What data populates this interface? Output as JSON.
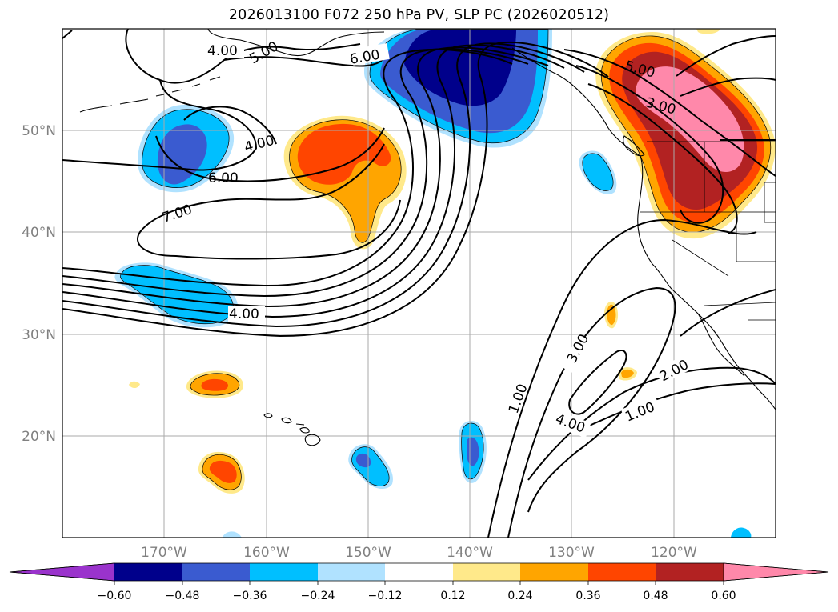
{
  "title": "2026013100 F072 250 hPa PV, SLP PC (2026020512)",
  "map": {
    "extent_lon": [
      -180,
      -110
    ],
    "extent_lat": [
      10,
      60
    ],
    "lat_ticks": [
      {
        "value": 20,
        "label": "20°N"
      },
      {
        "value": 30,
        "label": "30°N"
      },
      {
        "value": 40,
        "label": "40°N"
      },
      {
        "value": 50,
        "label": "50°N"
      }
    ],
    "lon_ticks": [
      {
        "value": -170,
        "label": "170°W"
      },
      {
        "value": -160,
        "label": "160°W"
      },
      {
        "value": -150,
        "label": "150°W"
      },
      {
        "value": -140,
        "label": "140°W"
      },
      {
        "value": -130,
        "label": "130°W"
      },
      {
        "value": -120,
        "label": "120°W"
      }
    ],
    "gridlines": true,
    "contour_labels": [
      "4.00",
      "5.00",
      "6.00",
      "4.00",
      "6.00",
      "7.00",
      "4.00",
      "5.00",
      "3.00",
      "3.00",
      "1.00",
      "4.00",
      "2.00",
      "1.00"
    ]
  },
  "colorbar": {
    "extend": "both",
    "colors": [
      "#9a33cc",
      "#00008b",
      "#3a5bd0",
      "#00bfff",
      "#b0e2ff",
      "#ffffff",
      "#ffe98a",
      "#ffa500",
      "#ff4500",
      "#b22222",
      "#ff88aa"
    ],
    "tick_labels": [
      "−0.60",
      "−0.48",
      "−0.36",
      "−0.24",
      "−0.12",
      "0.12",
      "0.24",
      "0.36",
      "0.48",
      "0.60"
    ]
  },
  "colors": {
    "neg_dark": "#00008b",
    "neg_mid": "#3a5bd0",
    "neg_light": "#00bfff",
    "neg_pale": "#b0e2ff",
    "pos_pale": "#ffe98a",
    "pos_orange": "#ffa500",
    "pos_red": "#ff4500",
    "pos_dark": "#b22222",
    "pos_pink": "#ff88aa"
  }
}
